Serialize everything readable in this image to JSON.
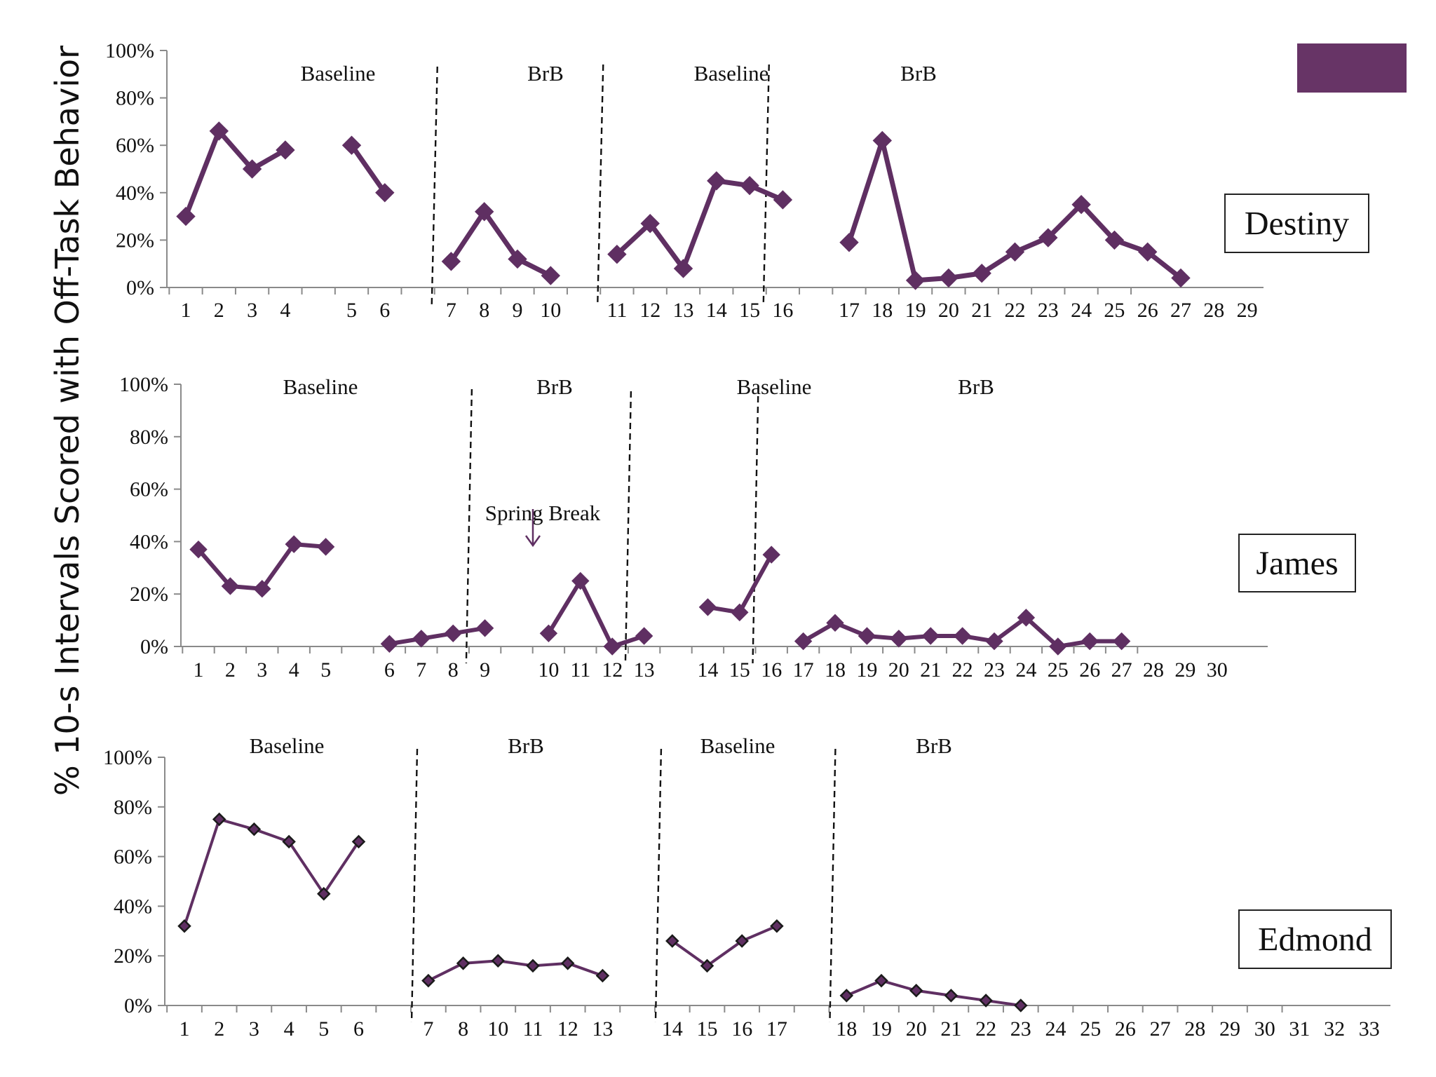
{
  "ylabel": "% 10-s Intervals Scored with Off-Task Behavior",
  "colors": {
    "series": "#5f2f62",
    "marker_edge": "#1a1a1a",
    "accent_box": "#673466"
  },
  "chart_data": [
    {
      "type": "line",
      "name": "Destiny",
      "ylim": [
        0,
        100
      ],
      "y_ticks": [
        "0%",
        "20%",
        "40%",
        "60%",
        "80%",
        "100%"
      ],
      "x_tick_labels": [
        "1",
        "2",
        "3",
        "4",
        "5",
        "6",
        "7",
        "8",
        "9",
        "10",
        "11",
        "12",
        "13",
        "14",
        "15",
        "16",
        "17",
        "18",
        "19",
        "20",
        "21",
        "22",
        "23",
        "24",
        "25",
        "26",
        "27",
        "28",
        "29"
      ],
      "phases": [
        {
          "label": "Baseline",
          "boundary_after": null
        },
        {
          "label": "BrB"
        },
        {
          "label": "Baseline"
        },
        {
          "label": "BrB"
        }
      ],
      "segments": [
        {
          "x": [
            1,
            2,
            3,
            4
          ],
          "y": [
            30,
            66,
            50,
            58
          ]
        },
        {
          "x": [
            5,
            6
          ],
          "y": [
            60,
            40
          ]
        },
        {
          "x": [
            7,
            8,
            9,
            10
          ],
          "y": [
            11,
            32,
            12,
            5
          ]
        },
        {
          "x": [
            11,
            12,
            13,
            14,
            15,
            16
          ],
          "y": [
            14,
            27,
            8,
            45,
            43,
            37
          ]
        },
        {
          "x": [
            17,
            18,
            19,
            20,
            21,
            22,
            23,
            24,
            25,
            26,
            27
          ],
          "y": [
            19,
            62,
            3,
            4,
            6,
            15,
            21,
            35,
            20,
            15,
            4
          ]
        }
      ],
      "annotations": []
    },
    {
      "type": "line",
      "name": "James",
      "ylim": [
        0,
        100
      ],
      "y_ticks": [
        "0%",
        "20%",
        "40%",
        "60%",
        "80%",
        "100%"
      ],
      "x_tick_labels": [
        "1",
        "2",
        "3",
        "4",
        "5",
        "6",
        "7",
        "8",
        "9",
        "10",
        "11",
        "12",
        "13",
        "14",
        "15",
        "16",
        "17",
        "18",
        "19",
        "20",
        "21",
        "22",
        "23",
        "24",
        "25",
        "26",
        "27",
        "28",
        "29",
        "30"
      ],
      "phases": [
        {
          "label": "Baseline"
        },
        {
          "label": "BrB"
        },
        {
          "label": "Baseline"
        },
        {
          "label": "BrB"
        }
      ],
      "segments": [
        {
          "x": [
            1,
            2,
            3,
            4,
            5
          ],
          "y": [
            37,
            23,
            22,
            39,
            38
          ]
        },
        {
          "x": [
            6,
            7,
            8,
            9
          ],
          "y": [
            1,
            3,
            5,
            7
          ]
        },
        {
          "x": [
            10,
            11,
            12,
            13
          ],
          "y": [
            5,
            25,
            0,
            4
          ]
        },
        {
          "x": [
            14,
            15,
            16
          ],
          "y": [
            15,
            13,
            35
          ]
        },
        {
          "x": [
            17,
            18,
            19,
            20,
            21,
            22,
            23,
            24,
            25,
            26,
            27
          ],
          "y": [
            2,
            9,
            4,
            3,
            4,
            4,
            2,
            11,
            0,
            2,
            2
          ]
        }
      ],
      "annotations": [
        {
          "text": "Spring Break"
        }
      ]
    },
    {
      "type": "line",
      "name": "Edmond",
      "ylim": [
        0,
        100
      ],
      "y_ticks": [
        "0%",
        "20%",
        "40%",
        "60%",
        "80%",
        "100%"
      ],
      "x_tick_labels": [
        "1",
        "2",
        "3",
        "4",
        "5",
        "6",
        "7",
        "8",
        "10",
        "11",
        "12",
        "13",
        "14",
        "15",
        "16",
        "17",
        "18",
        "19",
        "20",
        "21",
        "22",
        "23",
        "24",
        "25",
        "26",
        "27",
        "28",
        "29",
        "30",
        "31",
        "32",
        "33"
      ],
      "phases": [
        {
          "label": "Baseline"
        },
        {
          "label": "BrB"
        },
        {
          "label": "Baseline"
        },
        {
          "label": "BrB"
        }
      ],
      "segments": [
        {
          "x": [
            "1",
            "2",
            "3",
            "4",
            "5",
            "6"
          ],
          "y": [
            32,
            75,
            71,
            66,
            45,
            66
          ]
        },
        {
          "x": [
            "7",
            "8",
            "10",
            "11",
            "12",
            "13"
          ],
          "y": [
            10,
            17,
            18,
            16,
            17,
            12
          ]
        },
        {
          "x": [
            "14",
            "15",
            "16",
            "17"
          ],
          "y": [
            26,
            16,
            26,
            32
          ]
        },
        {
          "x": [
            "18",
            "19",
            "20",
            "21",
            "22",
            "23"
          ],
          "y": [
            4,
            10,
            6,
            4,
            2,
            0
          ]
        }
      ],
      "annotations": []
    }
  ]
}
